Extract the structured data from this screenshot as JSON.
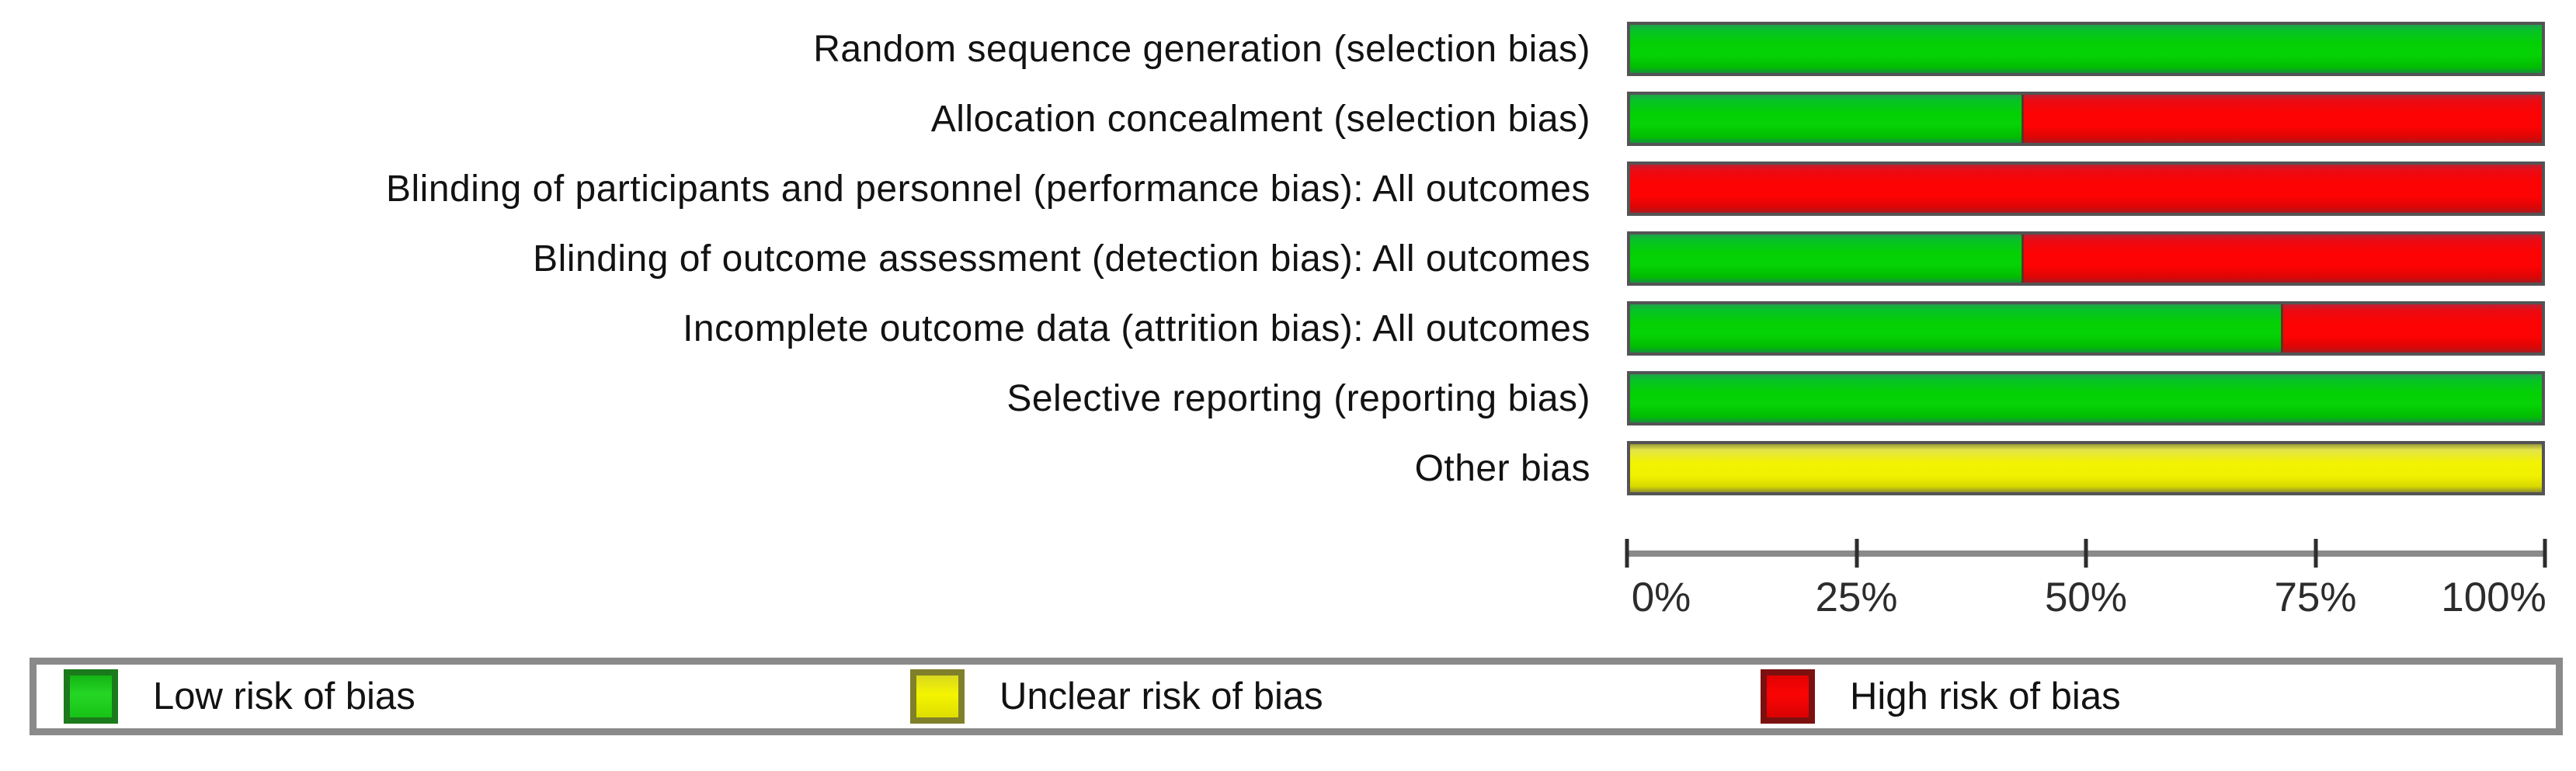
{
  "chart_data": {
    "type": "bar",
    "variant": "horizontal-stacked-percent",
    "title": "",
    "categories": [
      "Random sequence generation (selection bias)",
      "Allocation concealment (selection bias)",
      "Blinding of participants and personnel (performance bias): All outcomes",
      "Blinding of outcome assessment (detection bias): All outcomes",
      "Incomplete outcome data (attrition bias): All outcomes",
      "Selective reporting (reporting bias)",
      "Other bias"
    ],
    "series": [
      {
        "name": "Low risk of bias",
        "key": "low",
        "color": "#04d004",
        "values": [
          100,
          42.9,
          0,
          42.9,
          71.4,
          100,
          0
        ]
      },
      {
        "name": "Unclear risk of bias",
        "key": "unclear",
        "color": "#f0f000",
        "values": [
          0,
          0,
          0,
          0,
          0,
          0,
          100
        ]
      },
      {
        "name": "High risk of bias",
        "key": "high",
        "color": "#fd0303",
        "values": [
          0,
          57.1,
          100,
          57.1,
          28.6,
          0,
          0
        ]
      }
    ],
    "x_ticks": [
      "0%",
      "25%",
      "50%",
      "75%",
      "100%"
    ],
    "xlim": [
      0,
      100
    ],
    "xlabel": "",
    "ylabel": "",
    "grid": false,
    "legend_position": "bottom",
    "axis_color": "#8a8a8a",
    "tick_color": "#2d2d2d"
  }
}
